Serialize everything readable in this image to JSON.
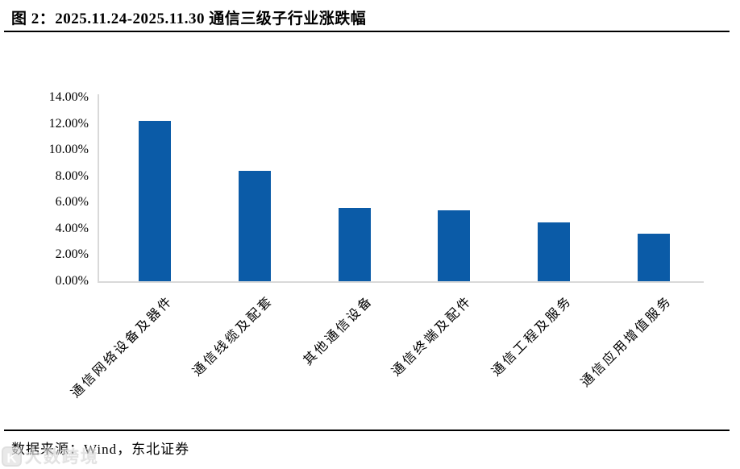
{
  "figure": {
    "title": "图 2：2025.11.24-2025.11.30 通信三级子行业涨跌幅",
    "source": "数据来源：Wind，东北证券"
  },
  "watermark": {
    "text": "大数跨境",
    "logo_glyph": "K"
  },
  "chart_data": {
    "type": "bar",
    "title": "2025.11.24-2025.11.30 通信三级子行业涨跌幅",
    "categories": [
      "通信网络设备及器件",
      "通信线缆及配套",
      "其他通信设备",
      "通信终端及配件",
      "通信工程及服务",
      "通信应用增值服务"
    ],
    "values": [
      12.2,
      8.4,
      5.6,
      5.4,
      4.5,
      3.6
    ],
    "value_unit": "%",
    "xlabel": "",
    "ylabel": "",
    "ylim": [
      0,
      14
    ],
    "ytick_step": 2,
    "ytick_labels": [
      "0.00%",
      "2.00%",
      "4.00%",
      "6.00%",
      "8.00%",
      "10.00%",
      "12.00%",
      "14.00%"
    ],
    "grid": false,
    "legend": false,
    "bar_color": "#0B5BA7",
    "axis_color": "#D9D9D9"
  }
}
